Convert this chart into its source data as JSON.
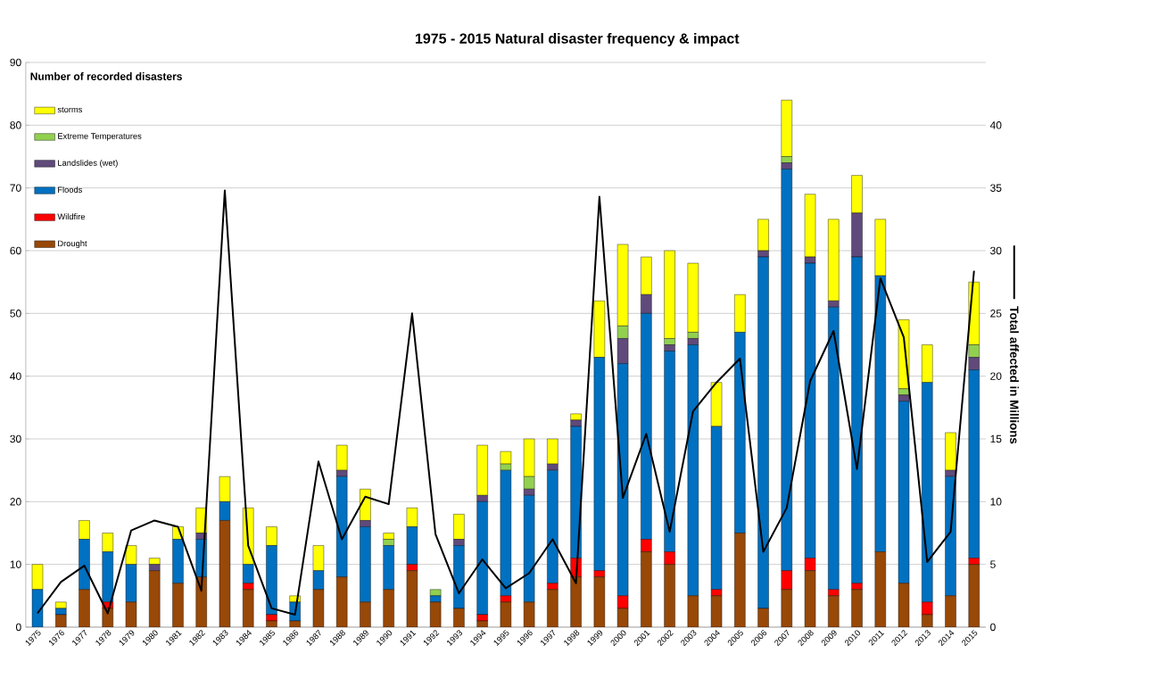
{
  "chart_data": {
    "type": "bar",
    "stacked": true,
    "title": "1975 - 2015 Natural disaster frequency & impact",
    "legend_title": "Number of recorded disasters",
    "y2label": "Total affected in Millions",
    "categories": [
      "1975",
      "1976",
      "1977",
      "1978",
      "1979",
      "1980",
      "1981",
      "1982",
      "1983",
      "1984",
      "1985",
      "1986",
      "1987",
      "1988",
      "1989",
      "1990",
      "1991",
      "1992",
      "1993",
      "1994",
      "1995",
      "1996",
      "1997",
      "1998",
      "1999",
      "2000",
      "2001",
      "2002",
      "2003",
      "2004",
      "2005",
      "2006",
      "2007",
      "2008",
      "2009",
      "2010",
      "2011",
      "2012",
      "2013",
      "2014",
      "2015"
    ],
    "series": [
      {
        "name": "Drought",
        "color": "#984807",
        "values": [
          0,
          2,
          6,
          3,
          4,
          9,
          7,
          8,
          17,
          6,
          1,
          1,
          6,
          8,
          4,
          6,
          9,
          4,
          3,
          1,
          4,
          4,
          6,
          8,
          8,
          3,
          12,
          10,
          5,
          5,
          15,
          3,
          6,
          9,
          5,
          6,
          12,
          7,
          2,
          5,
          10
        ]
      },
      {
        "name": "Wildfire",
        "color": "#ff0000",
        "values": [
          0,
          0,
          0,
          1,
          0,
          0,
          0,
          0,
          0,
          1,
          1,
          0,
          0,
          0,
          0,
          0,
          1,
          0,
          0,
          1,
          1,
          0,
          1,
          3,
          1,
          2,
          2,
          2,
          0,
          1,
          0,
          0,
          3,
          2,
          1,
          1,
          0,
          0,
          2,
          0,
          1
        ]
      },
      {
        "name": "Floods",
        "color": "#0070c0",
        "values": [
          6,
          1,
          8,
          8,
          6,
          0,
          7,
          6,
          3,
          3,
          11,
          3,
          3,
          16,
          12,
          7,
          6,
          1,
          10,
          18,
          20,
          17,
          18,
          21,
          34,
          37,
          36,
          32,
          40,
          26,
          32,
          56,
          64,
          47,
          45,
          52,
          44,
          29,
          35,
          19,
          30
        ]
      },
      {
        "name": "Landslides (wet)",
        "color": "#604a7b",
        "values": [
          0,
          0,
          0,
          0,
          0,
          1,
          0,
          1,
          0,
          0,
          0,
          0,
          0,
          1,
          1,
          0,
          0,
          0,
          1,
          1,
          0,
          1,
          1,
          1,
          0,
          4,
          3,
          1,
          1,
          0,
          0,
          1,
          1,
          1,
          1,
          7,
          0,
          1,
          0,
          1,
          2
        ]
      },
      {
        "name": "Extreme Temperatures",
        "color": "#92d050",
        "values": [
          0,
          0,
          0,
          0,
          0,
          0,
          0,
          0,
          0,
          0,
          0,
          0,
          0,
          0,
          0,
          1,
          0,
          1,
          0,
          0,
          1,
          2,
          0,
          0,
          0,
          2,
          0,
          1,
          1,
          0,
          0,
          0,
          1,
          0,
          0,
          0,
          0,
          1,
          0,
          0,
          2
        ]
      },
      {
        "name": "storms",
        "color": "#ffff00",
        "values": [
          4,
          1,
          3,
          3,
          3,
          1,
          2,
          4,
          4,
          9,
          3,
          1,
          4,
          4,
          5,
          1,
          3,
          0,
          4,
          8,
          2,
          6,
          4,
          1,
          9,
          13,
          6,
          14,
          11,
          7,
          6,
          5,
          9,
          10,
          13,
          6,
          9,
          11,
          6,
          6,
          10
        ]
      },
      {
        "type": "line",
        "axis": "y2",
        "color": "#000000",
        "marker": "none",
        "values": [
          1.1,
          3.6,
          4.9,
          1.1,
          7.7,
          8.5,
          8.0,
          2.9,
          34.8,
          6.5,
          1.5,
          1.0,
          13.2,
          7.0,
          10.4,
          9.8,
          25.0,
          7.4,
          2.7,
          5.4,
          3.1,
          4.3,
          7.0,
          3.5,
          34.3,
          10.3,
          15.4,
          7.6,
          17.2,
          19.5,
          21.4,
          6.0,
          9.5,
          19.6,
          23.6,
          12.6,
          27.8,
          23.1,
          5.2,
          7.6,
          28.4
        ]
      }
    ],
    "ylim": [
      0,
      90
    ],
    "yticks": [
      0,
      10,
      20,
      30,
      40,
      50,
      60,
      70,
      80,
      90
    ],
    "y2lim": [
      0,
      45
    ],
    "y2ticks": [
      0,
      5,
      10,
      15,
      20,
      25,
      30,
      35,
      40
    ],
    "grid": "y",
    "legend": "top left"
  }
}
